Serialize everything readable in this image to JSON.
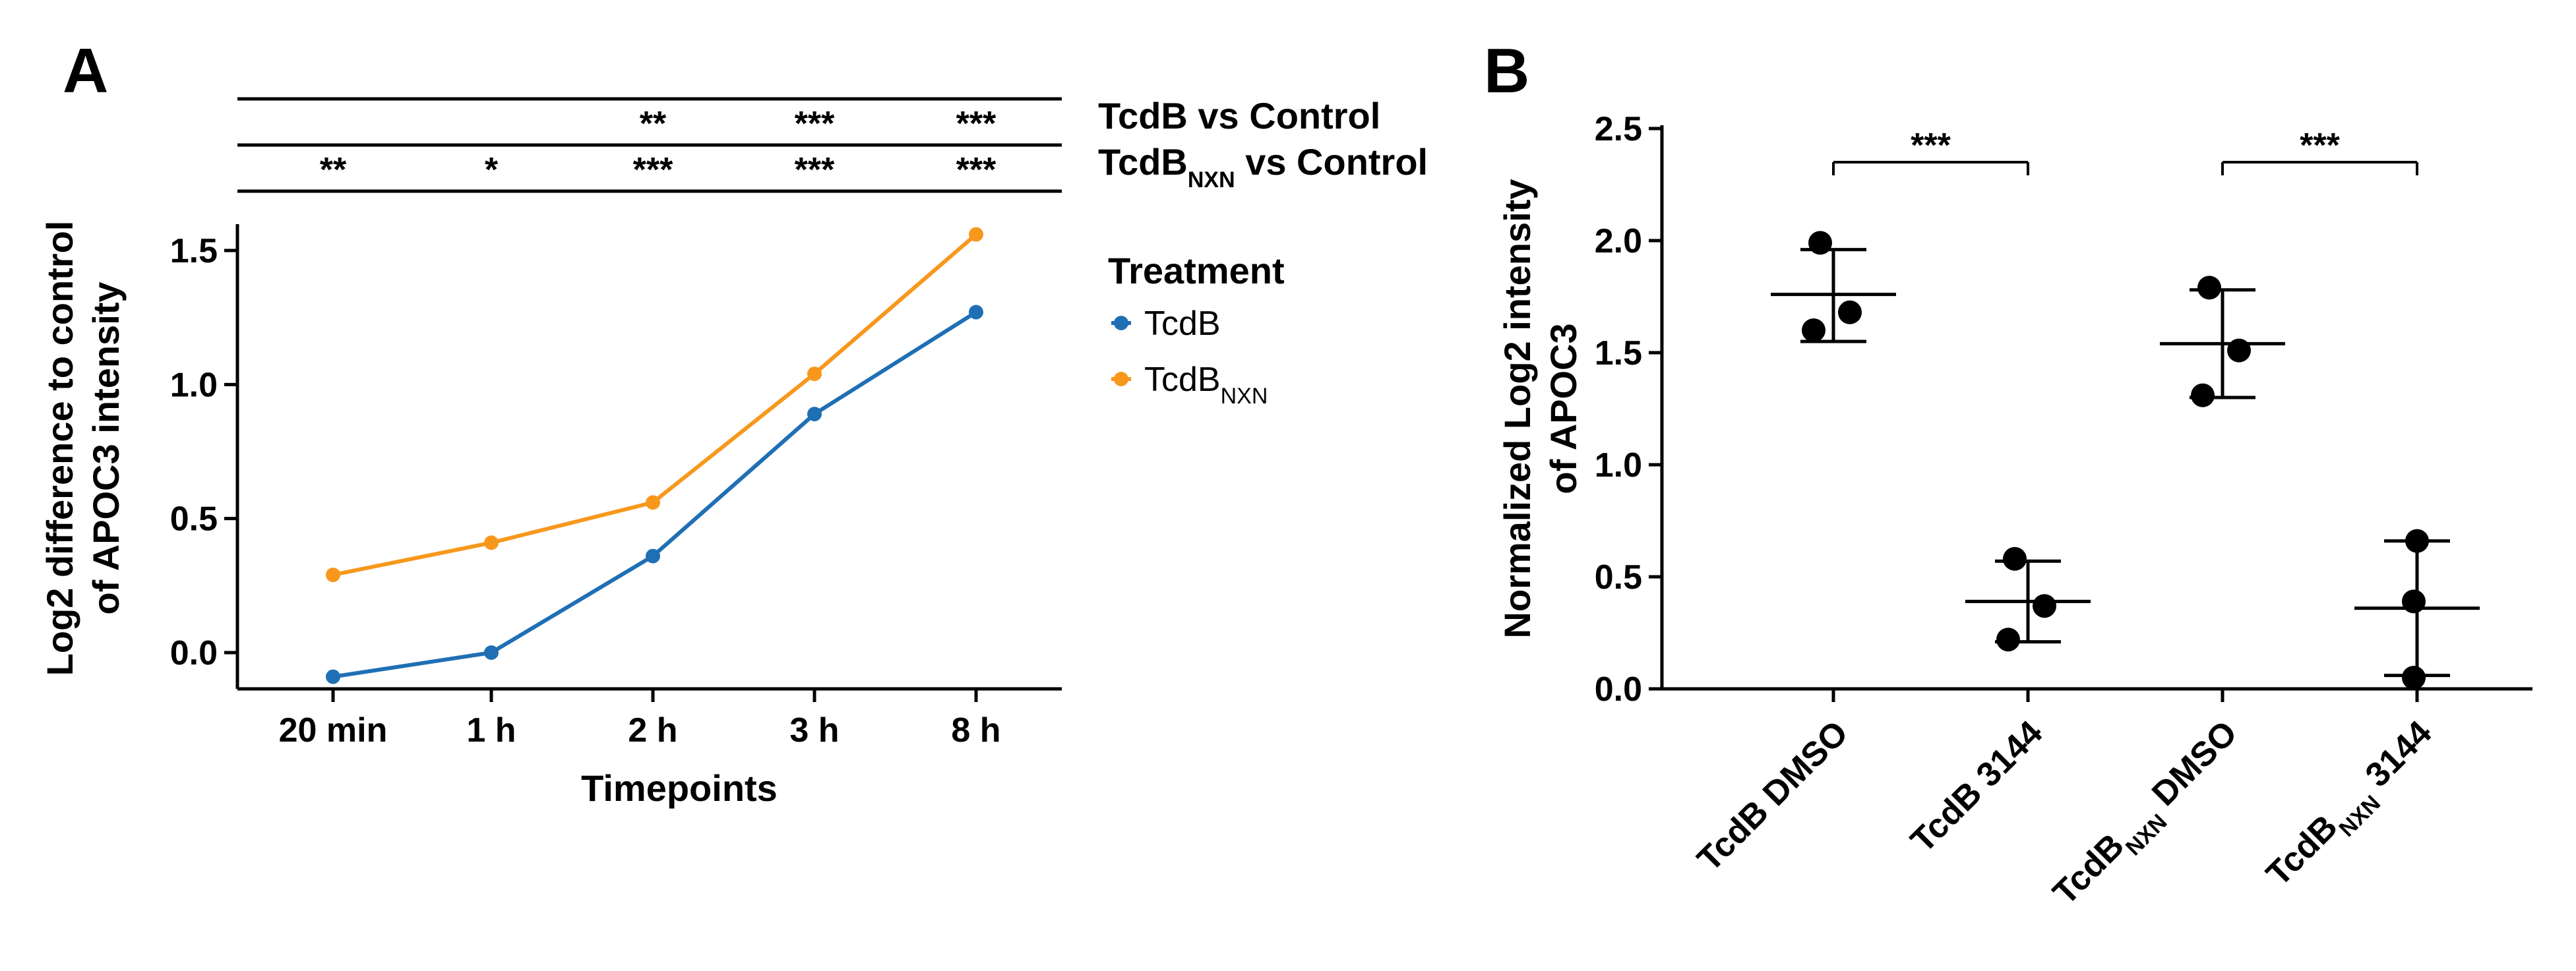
{
  "panel_a_letter": "A",
  "panel_b_letter": "B",
  "chart_data": [
    {
      "type": "line",
      "panel": "A",
      "categories": [
        "20 min",
        "1 h",
        "2 h",
        "3 h",
        "8 h"
      ],
      "xlabel": "Timepoints",
      "ylabel_line1": "Log2 difference to control",
      "ylabel_line2": "of APOC3 intensity",
      "ylim": [
        -0.15,
        1.65
      ],
      "yticks": [
        "0.0",
        "0.5",
        "1.0",
        "1.5"
      ],
      "legend": {
        "title": "Treatment",
        "position": "right",
        "entries": [
          {
            "name": "TcdB",
            "sub": ""
          },
          {
            "name": "TcdB",
            "sub": "NXN"
          }
        ]
      },
      "series": [
        {
          "name": "TcdB",
          "color": "#1f6fb5",
          "values": [
            -0.09,
            0.0,
            0.36,
            0.89,
            1.27
          ]
        },
        {
          "name": "TcdB_NXN",
          "color": "#f7981d",
          "values": [
            0.29,
            0.41,
            0.56,
            1.04,
            1.56
          ]
        }
      ],
      "significance_rows": [
        {
          "label": "TcdB vs Control",
          "sub": "",
          "label_after": "",
          "stars": [
            "",
            "",
            "**",
            "***",
            "***"
          ]
        },
        {
          "label": "TcdB",
          "sub": "NXN",
          "label_after": " vs Control",
          "stars": [
            "**",
            "*",
            "***",
            "***",
            "***"
          ]
        }
      ]
    },
    {
      "type": "scatter",
      "panel": "B",
      "ylabel_line1": "Normalized Log2 intensity",
      "ylabel_line2": "of APOC3",
      "ylim": [
        0,
        2.5
      ],
      "yticks": [
        "0.0",
        "0.5",
        "1.0",
        "1.5",
        "2.0",
        "2.5"
      ],
      "groups": [
        {
          "label": "TcdB DMSO",
          "label_pre": "TcdB",
          "sub": "",
          "label_post": " DMSO",
          "points": [
            1.99,
            1.68,
            1.6
          ],
          "mean": 1.76,
          "sd_low": 1.55,
          "sd_high": 1.96
        },
        {
          "label": "TcdB 3144",
          "label_pre": "TcdB",
          "sub": "",
          "label_post": " 3144",
          "points": [
            0.58,
            0.37,
            0.22
          ],
          "mean": 0.39,
          "sd_low": 0.21,
          "sd_high": 0.57
        },
        {
          "label": "TcdB_NXN DMSO",
          "label_pre": "TcdB",
          "sub": "NXN",
          "label_post": " DMSO",
          "points": [
            1.79,
            1.51,
            1.31
          ],
          "mean": 1.54,
          "sd_low": 1.3,
          "sd_high": 1.78
        },
        {
          "label": "TcdB_NXN 3144",
          "label_pre": "TcdB",
          "sub": "NXN",
          "label_post": " 3144",
          "points": [
            0.66,
            0.39,
            0.05
          ],
          "mean": 0.36,
          "sd_low": 0.06,
          "sd_high": 0.66
        }
      ],
      "brackets": [
        {
          "from": 0,
          "to": 1,
          "y": 2.35,
          "stars": "***"
        },
        {
          "from": 2,
          "to": 3,
          "y": 2.35,
          "stars": "***"
        }
      ]
    }
  ]
}
